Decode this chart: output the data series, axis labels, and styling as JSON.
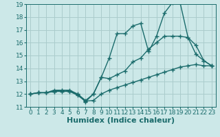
{
  "xlabel": "Humidex (Indice chaleur)",
  "xlim": [
    -0.5,
    23.5
  ],
  "ylim": [
    11,
    19
  ],
  "xticks": [
    0,
    1,
    2,
    3,
    4,
    5,
    6,
    7,
    8,
    9,
    10,
    11,
    12,
    13,
    14,
    15,
    16,
    17,
    18,
    19,
    20,
    21,
    22,
    23
  ],
  "yticks": [
    11,
    12,
    13,
    14,
    15,
    16,
    17,
    18,
    19
  ],
  "bg_color": "#cce8e8",
  "grid_color": "#aacccc",
  "line_color": "#1a6b6b",
  "line1_x": [
    0,
    1,
    2,
    3,
    4,
    5,
    6,
    7,
    8,
    9,
    10,
    11,
    12,
    13,
    14,
    15,
    16,
    17,
    18,
    19,
    20,
    21,
    22,
    23
  ],
  "line1_y": [
    12.0,
    12.1,
    12.1,
    12.2,
    12.2,
    12.2,
    11.9,
    11.45,
    11.5,
    12.0,
    12.3,
    12.5,
    12.7,
    12.9,
    13.1,
    13.3,
    13.5,
    13.7,
    13.9,
    14.1,
    14.2,
    14.3,
    14.2,
    14.2
  ],
  "line2_x": [
    0,
    1,
    2,
    3,
    4,
    5,
    6,
    7,
    8,
    9,
    10,
    11,
    12,
    13,
    14,
    15,
    16,
    17,
    18,
    19,
    20,
    21,
    22,
    23
  ],
  "line2_y": [
    12.0,
    12.1,
    12.1,
    12.2,
    12.3,
    12.25,
    11.95,
    11.4,
    12.0,
    13.3,
    13.2,
    13.5,
    13.8,
    14.5,
    14.8,
    15.5,
    16.0,
    16.5,
    16.5,
    16.5,
    16.4,
    15.8,
    14.6,
    14.2
  ],
  "line3_x": [
    0,
    1,
    2,
    3,
    4,
    5,
    6,
    7,
    8,
    9,
    10,
    11,
    12,
    13,
    14,
    15,
    16,
    17,
    18,
    19,
    20,
    21,
    22,
    23
  ],
  "line3_y": [
    12.0,
    12.1,
    12.1,
    12.3,
    12.3,
    12.3,
    12.0,
    11.5,
    12.0,
    13.3,
    14.8,
    16.7,
    16.7,
    17.3,
    17.5,
    15.3,
    16.5,
    18.3,
    19.1,
    19.1,
    16.4,
    15.1,
    14.6,
    14.2
  ],
  "marker": "+",
  "markersize": 4,
  "linewidth": 1.0,
  "xlabel_fontsize": 8,
  "tick_fontsize": 6.5
}
